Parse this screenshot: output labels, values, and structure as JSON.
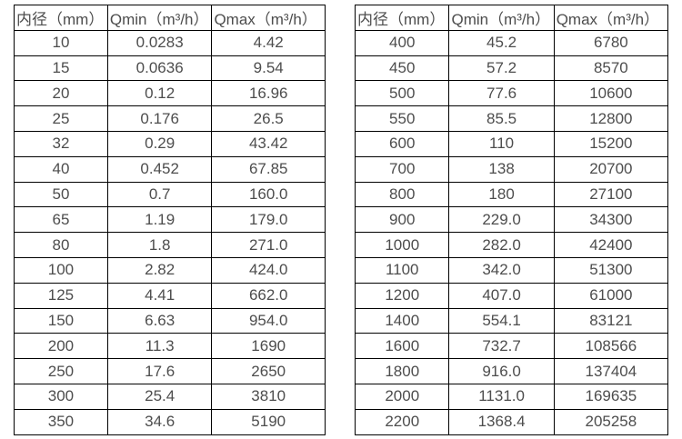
{
  "colors": {
    "background": "#ffffff",
    "border": "#000000",
    "text": "#4d4d4d"
  },
  "tables": [
    {
      "headers": [
        "内径（mm）",
        "Qmin（m³/h）",
        "Qmax（m³/h）"
      ],
      "rows": [
        [
          "10",
          "0.0283",
          "4.42"
        ],
        [
          "15",
          "0.0636",
          "9.54"
        ],
        [
          "20",
          "0.12",
          "16.96"
        ],
        [
          "25",
          "0.176",
          "26.5"
        ],
        [
          "32",
          "0.29",
          "43.42"
        ],
        [
          "40",
          "0.452",
          "67.85"
        ],
        [
          "50",
          "0.7",
          "160.0"
        ],
        [
          "65",
          "1.19",
          "179.0"
        ],
        [
          "80",
          "1.8",
          "271.0"
        ],
        [
          "100",
          "2.82",
          "424.0"
        ],
        [
          "125",
          "4.41",
          "662.0"
        ],
        [
          "150",
          "6.63",
          "954.0"
        ],
        [
          "200",
          "11.3",
          "1690"
        ],
        [
          "250",
          "17.6",
          "2650"
        ],
        [
          "300",
          "25.4",
          "3810"
        ],
        [
          "350",
          "34.6",
          "5190"
        ]
      ]
    },
    {
      "headers": [
        "内径（mm）",
        "Qmin（m³/h）",
        "Qmax（m³/h）"
      ],
      "rows": [
        [
          "400",
          "45.2",
          "6780"
        ],
        [
          "450",
          "57.2",
          "8570"
        ],
        [
          "500",
          "77.6",
          "10600"
        ],
        [
          "550",
          "85.5",
          "12800"
        ],
        [
          "600",
          "110",
          "15200"
        ],
        [
          "700",
          "138",
          "20700"
        ],
        [
          "800",
          "180",
          "27100"
        ],
        [
          "900",
          "229.0",
          "34300"
        ],
        [
          "1000",
          "282.0",
          "42400"
        ],
        [
          "1100",
          "342.0",
          "51300"
        ],
        [
          "1200",
          "407.0",
          "61000"
        ],
        [
          "1400",
          "554.1",
          "83121"
        ],
        [
          "1600",
          "732.7",
          "108566"
        ],
        [
          "1800",
          "916.0",
          "137404"
        ],
        [
          "2000",
          "1131.0",
          "169635"
        ],
        [
          "2200",
          "1368.4",
          "205258"
        ]
      ]
    }
  ]
}
